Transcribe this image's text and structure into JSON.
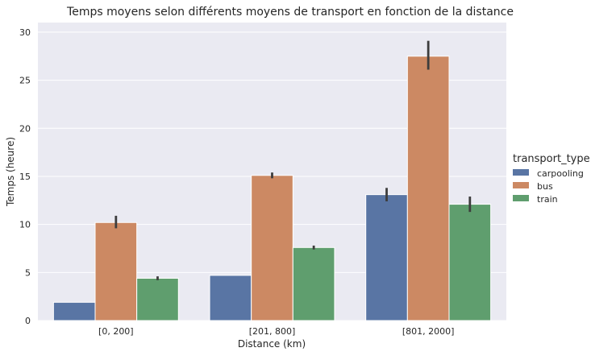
{
  "chart_data": {
    "type": "bar",
    "title": "Temps moyens selon différents moyens de transport en fonction de la distance",
    "xlabel": "Distance (km)",
    "ylabel": "Temps (heure)",
    "categories": [
      "[0, 200]",
      "[201, 800]",
      "[801, 2000]"
    ],
    "ylim": [
      0,
      31
    ],
    "yticks": [
      0,
      5,
      10,
      15,
      20,
      25,
      30
    ],
    "grid": true,
    "legend": {
      "title": "transport_type",
      "placement": "right"
    },
    "series": [
      {
        "name": "carpooling",
        "color": "#5975a4",
        "values": [
          1.9,
          4.7,
          13.1
        ],
        "err_low": [
          null,
          null,
          12.4
        ],
        "err_high": [
          null,
          null,
          13.8
        ]
      },
      {
        "name": "bus",
        "color": "#cc8963",
        "values": [
          10.2,
          15.1,
          27.5
        ],
        "err_low": [
          9.6,
          14.8,
          26.1
        ],
        "err_high": [
          10.9,
          15.4,
          29.1
        ]
      },
      {
        "name": "train",
        "color": "#5f9e6e",
        "values": [
          4.4,
          7.6,
          12.1
        ],
        "err_low": [
          4.2,
          7.4,
          11.3
        ],
        "err_high": [
          4.6,
          7.8,
          12.9
        ]
      }
    ]
  }
}
